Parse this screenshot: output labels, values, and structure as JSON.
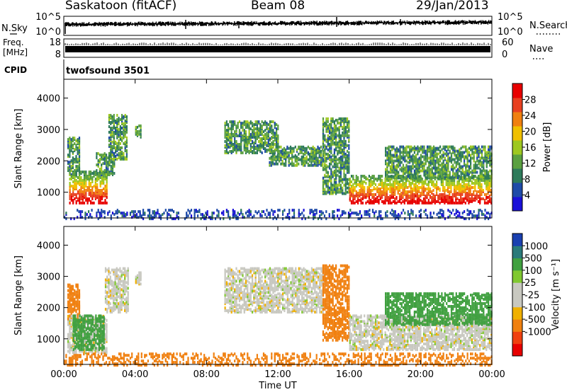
{
  "header": {
    "title": "Saskatoon (fitACF)",
    "beam": "Beam 08",
    "date": "29/Jan/2013"
  },
  "top_panels": {
    "nsky_label": "N.Sky",
    "nsky_ticks": [
      "10^5",
      "10^0"
    ],
    "nsearch_label": "N.Search",
    "nsearch_ticks": [
      "10^5",
      "10^0"
    ],
    "freq_label": "Freq.",
    "freq_unit": "[MHz]",
    "freq_ticks": [
      "18",
      "8"
    ],
    "nave_label": "Nave",
    "nave_ticks": [
      "60",
      "0"
    ],
    "cpid_label": "CPID",
    "cpid_value": "twofsound 3501"
  },
  "colors": {
    "power_scale": [
      "#1a10d8",
      "#1e4aa8",
      "#2d7a5a",
      "#5aa040",
      "#9ec820",
      "#f0c000",
      "#f08010",
      "#e84020",
      "#e80000"
    ],
    "velocity_scale": [
      "#e80000",
      "#f04010",
      "#f08010",
      "#f0b000",
      "#c8c8c0",
      "#c8c8c0",
      "#80c830",
      "#40a040",
      "#2a7a7a",
      "#1a40b0"
    ]
  },
  "chart_data": [
    {
      "type": "heatmap",
      "name": "power",
      "xlabel": "",
      "ylabel": "Slant Range [km]",
      "x_ticks": [
        "00:00",
        "04:00",
        "08:00",
        "12:00",
        "16:00",
        "20:00",
        "00:00"
      ],
      "y_ticks": [
        1000,
        2000,
        3000,
        4000
      ],
      "xlim_hours": [
        0,
        24
      ],
      "ylim_km": [
        180,
        4600
      ],
      "colorbar_label": "Power [dB]",
      "colorbar_ticks": [
        4,
        8,
        12,
        16,
        20,
        24,
        28
      ],
      "colorbar_range": [
        0,
        32
      ],
      "echo_regions": [
        {
          "t_start": 0.2,
          "t_end": 0.9,
          "r_low": 1600,
          "r_high": 2800
        },
        {
          "t_start": 0.3,
          "t_end": 2.4,
          "r_low": 700,
          "r_high": 1700
        },
        {
          "t_start": 1.8,
          "t_end": 2.8,
          "r_low": 1600,
          "r_high": 2300
        },
        {
          "t_start": 2.5,
          "t_end": 3.5,
          "r_low": 2100,
          "r_high": 3500
        },
        {
          "t_start": 4.0,
          "t_end": 4.3,
          "r_low": 2800,
          "r_high": 3200
        },
        {
          "t_start": 9.0,
          "t_end": 12.0,
          "r_low": 2300,
          "r_high": 3300
        },
        {
          "t_start": 11.5,
          "t_end": 14.5,
          "r_low": 1900,
          "r_high": 2500
        },
        {
          "t_start": 14.5,
          "t_end": 16.0,
          "r_low": 1000,
          "r_high": 3400
        },
        {
          "t_start": 16.0,
          "t_end": 24.0,
          "r_low": 700,
          "r_high": 1600
        },
        {
          "t_start": 18.0,
          "t_end": 24.0,
          "r_low": 1500,
          "r_high": 2500
        },
        {
          "t_start": 0.0,
          "t_end": 24.0,
          "r_low": 200,
          "r_high": 500
        }
      ]
    },
    {
      "type": "heatmap",
      "name": "velocity",
      "xlabel": "Time UT",
      "ylabel": "Slant Range [km]",
      "x_ticks": [
        "00:00",
        "04:00",
        "08:00",
        "12:00",
        "16:00",
        "20:00",
        "00:00"
      ],
      "y_ticks": [
        1000,
        2000,
        3000,
        4000
      ],
      "xlim_hours": [
        0,
        24
      ],
      "ylim_km": [
        180,
        4600
      ],
      "colorbar_label": "Velocity [m s⁻¹]",
      "colorbar_ticks": [
        "1000",
        "500",
        "100",
        "25",
        "-25",
        "-100",
        "-500",
        "-1000"
      ],
      "echo_regions": [
        {
          "t_start": 0.2,
          "t_end": 0.9,
          "r_low": 1600,
          "r_high": 2800,
          "v": -300
        },
        {
          "t_start": 0.2,
          "t_end": 2.4,
          "r_low": 600,
          "r_high": 1800,
          "v": 0
        },
        {
          "t_start": 0.5,
          "t_end": 2.3,
          "r_low": 700,
          "r_high": 1800,
          "v": 150
        },
        {
          "t_start": 2.3,
          "t_end": 3.6,
          "r_low": 1900,
          "r_high": 3300,
          "v": 0
        },
        {
          "t_start": 4.0,
          "t_end": 4.3,
          "r_low": 2800,
          "r_high": 3200,
          "v": 0
        },
        {
          "t_start": 9.0,
          "t_end": 14.5,
          "r_low": 1900,
          "r_high": 3300,
          "v": 0
        },
        {
          "t_start": 14.5,
          "t_end": 16.0,
          "r_low": 1000,
          "r_high": 3400,
          "v": -300
        },
        {
          "t_start": 16.0,
          "t_end": 24.0,
          "r_low": 700,
          "r_high": 1800,
          "v": 0
        },
        {
          "t_start": 18.0,
          "t_end": 24.0,
          "r_low": 1500,
          "r_high": 2500,
          "v": 200
        },
        {
          "t_start": 0.0,
          "t_end": 24.0,
          "r_low": 200,
          "r_high": 600,
          "v": -150
        }
      ]
    }
  ]
}
